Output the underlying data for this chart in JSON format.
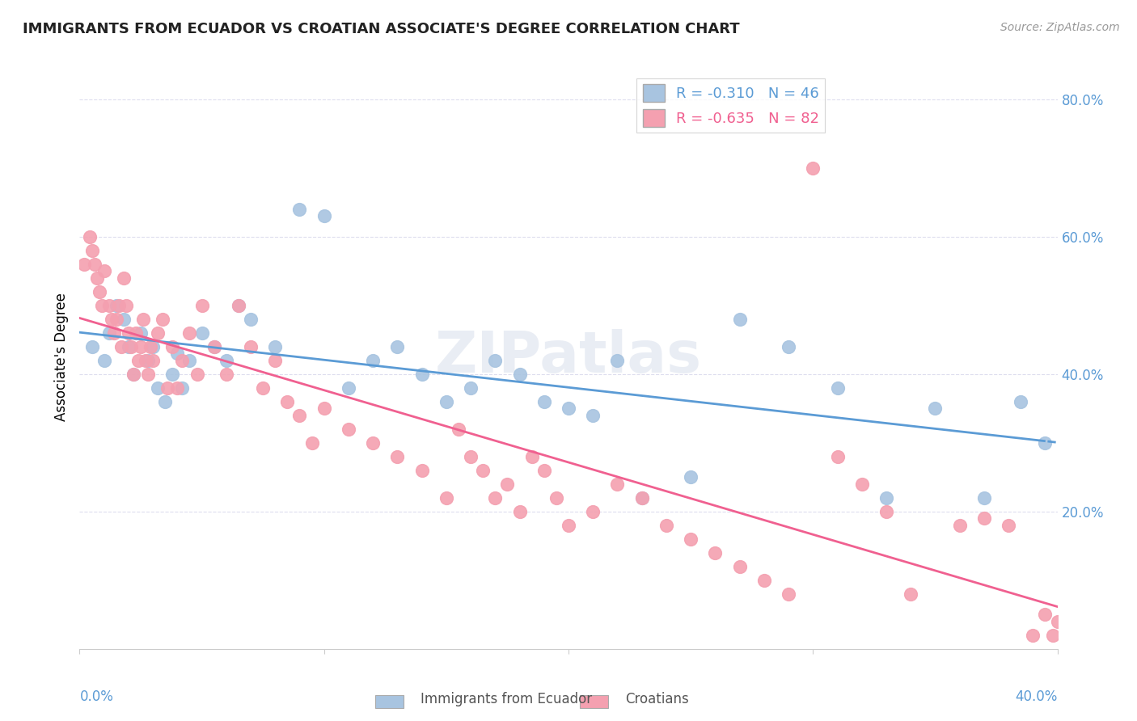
{
  "title": "IMMIGRANTS FROM ECUADOR VS CROATIAN ASSOCIATE'S DEGREE CORRELATION CHART",
  "source": "Source: ZipAtlas.com",
  "ylabel": "Associate's Degree",
  "right_yticks": [
    "20.0%",
    "40.0%",
    "60.0%",
    "80.0%"
  ],
  "right_ytick_vals": [
    0.2,
    0.4,
    0.6,
    0.8
  ],
  "ecuador_color": "#a8c4e0",
  "croatian_color": "#f4a0b0",
  "ecuador_line_color": "#5b9bd5",
  "croatian_line_color": "#f06090",
  "watermark": "ZIPatlas",
  "ecuador_R": -0.31,
  "ecuador_N": 46,
  "croatian_R": -0.635,
  "croatian_N": 82,
  "xlim": [
    0.0,
    0.4
  ],
  "ylim": [
    0.0,
    0.85
  ],
  "ecuador_x": [
    0.005,
    0.01,
    0.012,
    0.015,
    0.018,
    0.02,
    0.022,
    0.025,
    0.028,
    0.03,
    0.032,
    0.035,
    0.038,
    0.04,
    0.042,
    0.045,
    0.05,
    0.055,
    0.06,
    0.065,
    0.07,
    0.08,
    0.09,
    0.1,
    0.11,
    0.12,
    0.13,
    0.14,
    0.15,
    0.16,
    0.17,
    0.18,
    0.19,
    0.2,
    0.21,
    0.22,
    0.23,
    0.25,
    0.27,
    0.29,
    0.31,
    0.33,
    0.35,
    0.37,
    0.385,
    0.395
  ],
  "ecuador_y": [
    0.44,
    0.42,
    0.46,
    0.5,
    0.48,
    0.44,
    0.4,
    0.46,
    0.42,
    0.44,
    0.38,
    0.36,
    0.4,
    0.43,
    0.38,
    0.42,
    0.46,
    0.44,
    0.42,
    0.5,
    0.48,
    0.44,
    0.64,
    0.63,
    0.38,
    0.42,
    0.44,
    0.4,
    0.36,
    0.38,
    0.42,
    0.4,
    0.36,
    0.35,
    0.34,
    0.42,
    0.22,
    0.25,
    0.48,
    0.44,
    0.38,
    0.22,
    0.35,
    0.22,
    0.36,
    0.3
  ],
  "croatian_x": [
    0.002,
    0.004,
    0.005,
    0.006,
    0.007,
    0.008,
    0.009,
    0.01,
    0.012,
    0.013,
    0.014,
    0.015,
    0.016,
    0.017,
    0.018,
    0.019,
    0.02,
    0.021,
    0.022,
    0.023,
    0.024,
    0.025,
    0.026,
    0.027,
    0.028,
    0.029,
    0.03,
    0.032,
    0.034,
    0.036,
    0.038,
    0.04,
    0.042,
    0.045,
    0.048,
    0.05,
    0.055,
    0.06,
    0.065,
    0.07,
    0.075,
    0.08,
    0.085,
    0.09,
    0.095,
    0.1,
    0.11,
    0.12,
    0.13,
    0.14,
    0.15,
    0.155,
    0.16,
    0.165,
    0.17,
    0.175,
    0.18,
    0.185,
    0.19,
    0.195,
    0.2,
    0.21,
    0.22,
    0.23,
    0.24,
    0.25,
    0.26,
    0.27,
    0.28,
    0.29,
    0.3,
    0.31,
    0.32,
    0.33,
    0.34,
    0.36,
    0.37,
    0.38,
    0.39,
    0.395,
    0.398,
    0.4
  ],
  "croatian_y": [
    0.56,
    0.6,
    0.58,
    0.56,
    0.54,
    0.52,
    0.5,
    0.55,
    0.5,
    0.48,
    0.46,
    0.48,
    0.5,
    0.44,
    0.54,
    0.5,
    0.46,
    0.44,
    0.4,
    0.46,
    0.42,
    0.44,
    0.48,
    0.42,
    0.4,
    0.44,
    0.42,
    0.46,
    0.48,
    0.38,
    0.44,
    0.38,
    0.42,
    0.46,
    0.4,
    0.5,
    0.44,
    0.4,
    0.5,
    0.44,
    0.38,
    0.42,
    0.36,
    0.34,
    0.3,
    0.35,
    0.32,
    0.3,
    0.28,
    0.26,
    0.22,
    0.32,
    0.28,
    0.26,
    0.22,
    0.24,
    0.2,
    0.28,
    0.26,
    0.22,
    0.18,
    0.2,
    0.24,
    0.22,
    0.18,
    0.16,
    0.14,
    0.12,
    0.1,
    0.08,
    0.7,
    0.28,
    0.24,
    0.2,
    0.08,
    0.18,
    0.19,
    0.18,
    0.02,
    0.05,
    0.02,
    0.04
  ]
}
